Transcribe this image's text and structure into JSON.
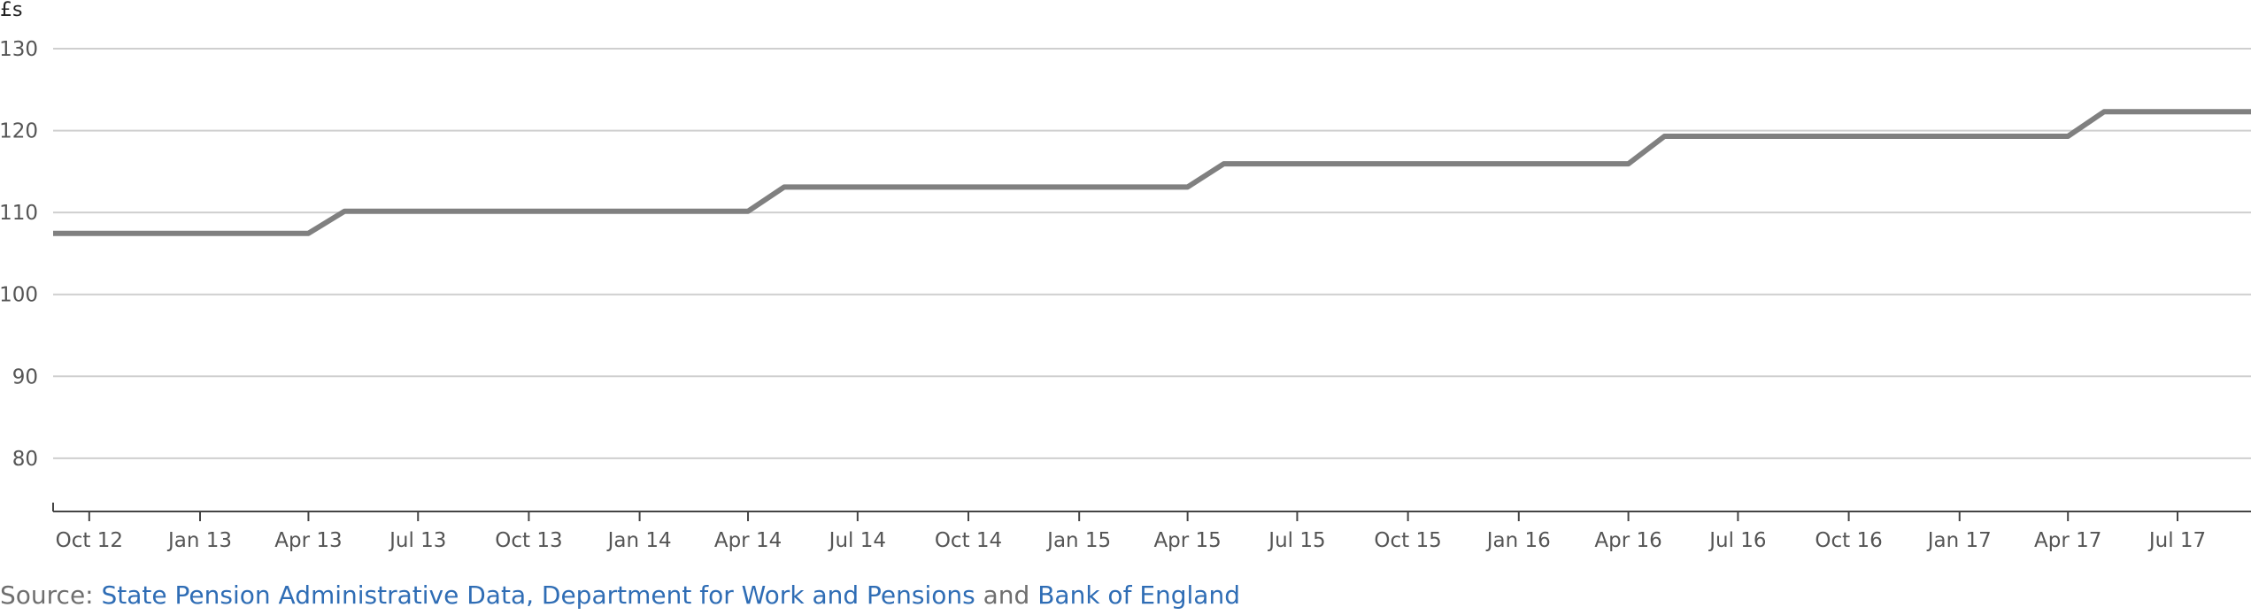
{
  "chart_data": {
    "type": "line",
    "ylabel": "£s",
    "yticks": [
      80,
      90,
      100,
      110,
      120,
      130
    ],
    "ylim": [
      73.5,
      130
    ],
    "xlim": [
      "2012-09-01",
      "2017-08-31"
    ],
    "xticks": [
      {
        "date": "2012-10-01",
        "label": "Oct 12"
      },
      {
        "date": "2013-01-01",
        "label": "Jan 13"
      },
      {
        "date": "2013-04-01",
        "label": "Apr 13"
      },
      {
        "date": "2013-07-01",
        "label": "Jul 13"
      },
      {
        "date": "2013-10-01",
        "label": "Oct 13"
      },
      {
        "date": "2014-01-01",
        "label": "Jan 14"
      },
      {
        "date": "2014-04-01",
        "label": "Apr 14"
      },
      {
        "date": "2014-07-01",
        "label": "Jul 14"
      },
      {
        "date": "2014-10-01",
        "label": "Oct 14"
      },
      {
        "date": "2015-01-01",
        "label": "Jan 15"
      },
      {
        "date": "2015-04-01",
        "label": "Apr 15"
      },
      {
        "date": "2015-07-01",
        "label": "Jul 15"
      },
      {
        "date": "2015-10-01",
        "label": "Oct 15"
      },
      {
        "date": "2016-01-01",
        "label": "Jan 16"
      },
      {
        "date": "2016-04-01",
        "label": "Apr 16"
      },
      {
        "date": "2016-07-01",
        "label": "Jul 16"
      },
      {
        "date": "2016-10-01",
        "label": "Oct 16"
      },
      {
        "date": "2017-01-01",
        "label": "Jan 17"
      },
      {
        "date": "2017-04-01",
        "label": "Apr 17"
      },
      {
        "date": "2017-07-01",
        "label": "Jul 17"
      }
    ],
    "grid": true,
    "legend": "none",
    "series": [
      {
        "color": "#808080",
        "x": [
          "2012-09-01",
          "2013-04-01",
          "2013-05-01",
          "2014-04-01",
          "2014-05-01",
          "2015-04-01",
          "2015-05-01",
          "2016-04-01",
          "2016-05-01",
          "2017-04-01",
          "2017-05-01",
          "2017-08-31"
        ],
        "y": [
          107.45,
          107.45,
          110.15,
          110.15,
          113.1,
          113.1,
          115.95,
          115.95,
          119.3,
          119.3,
          122.3,
          122.3
        ]
      }
    ]
  },
  "source": {
    "prefix": "Source: ",
    "link1": "State Pension Administrative Data, Department for Work and Pensions",
    "conj": " and ",
    "link2": "Bank of England"
  }
}
